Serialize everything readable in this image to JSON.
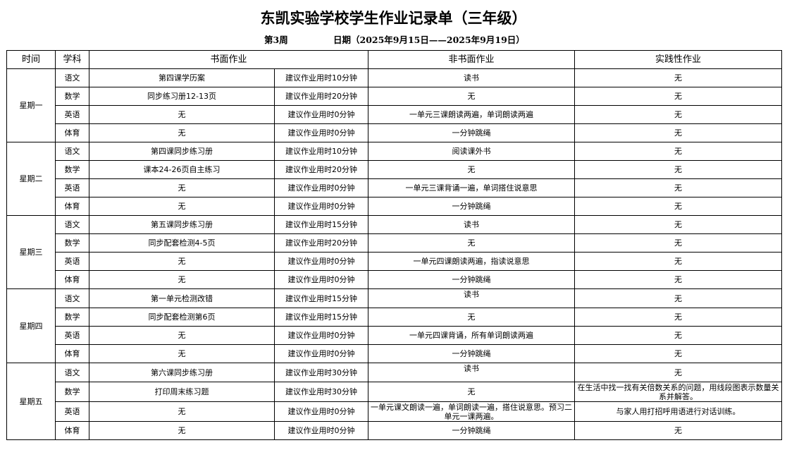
{
  "title": "东凯实验学校学生作业记录单（三年级）",
  "week": "第3周",
  "date": "日期（2025年9月15日——2025年9月19日）",
  "headers": {
    "time": "时间",
    "subject": "学科",
    "written": "书面作业",
    "nonwritten": "非书面作业",
    "practice": "实践性作业"
  },
  "days": [
    {
      "day": "星期一",
      "rows": [
        {
          "subject": "语文",
          "written": "第四课学历案",
          "time": "建议作业用时10分钟",
          "nonwritten": "读书",
          "practice": "无"
        },
        {
          "subject": "数学",
          "written": "同步练习册12-13页",
          "time": "建议作业用时20分钟",
          "nonwritten": "无",
          "practice": "无"
        },
        {
          "subject": "英语",
          "written": "无",
          "time": "建议作业用时0分钟",
          "nonwritten": "一单元三课朗读两遍，单词朗读两遍",
          "practice": "无"
        },
        {
          "subject": "体育",
          "written": "无",
          "time": "建议作业用时0分钟",
          "nonwritten": "一分钟跳绳",
          "practice": "无"
        }
      ]
    },
    {
      "day": "星期二",
      "rows": [
        {
          "subject": "语文",
          "written": "第四课同步练习册",
          "time": "建议作业用时10分钟",
          "nonwritten": "阅读课外书",
          "practice": "无"
        },
        {
          "subject": "数学",
          "written": "课本24-26页自主练习",
          "time": "建议作业用时20分钟",
          "nonwritten": "无",
          "practice": "无"
        },
        {
          "subject": "英语",
          "written": "无",
          "time": "建议作业用时0分钟",
          "nonwritten": "一单元三课背诵一遍，单词搭住说意思",
          "practice": "无"
        },
        {
          "subject": "体育",
          "written": "无",
          "time": "建议作业用时0分钟",
          "nonwritten": "一分钟跳绳",
          "practice": "无"
        }
      ]
    },
    {
      "day": "星期三",
      "rows": [
        {
          "subject": "语文",
          "written": "第五课同步练习册",
          "time": "建议作业用时15分钟",
          "nonwritten": "读书",
          "practice": "无"
        },
        {
          "subject": "数学",
          "written": "同步配套检测4-5页",
          "time": "建议作业用时20分钟",
          "nonwritten": "无",
          "practice": "无"
        },
        {
          "subject": "英语",
          "written": "无",
          "time": "建议作业用时0分钟",
          "nonwritten": "一单元四课朗读两遍，指读说意思",
          "practice": "无"
        },
        {
          "subject": "体育",
          "written": "无",
          "time": "建议作业用时0分钟",
          "nonwritten": "一分钟跳绳",
          "practice": "无"
        }
      ]
    },
    {
      "day": "星期四",
      "rows": [
        {
          "subject": "语文",
          "written": "第一单元检测改错",
          "time": "建议作业用时15分钟",
          "nonwritten": "读书",
          "practice": "无"
        },
        {
          "subject": "数学",
          "written": "同步配套检测第6页",
          "time": "建议作业用时15分钟",
          "nonwritten": "无",
          "practice": "无"
        },
        {
          "subject": "英语",
          "written": "无",
          "time": "建议作业用时0分钟",
          "nonwritten": "一单元四课背诵，所有单词朗读两遍",
          "practice": "无"
        },
        {
          "subject": "体育",
          "written": "无",
          "time": "建议作业用时0分钟",
          "nonwritten": "一分钟跳绳",
          "practice": "无"
        }
      ]
    },
    {
      "day": "星期五",
      "rows": [
        {
          "subject": "语文",
          "written": "第六课同步练习册",
          "time": "建议作业用时30分钟",
          "nonwritten": "读书",
          "practice": "无"
        },
        {
          "subject": "数学",
          "written": "打印周末练习题",
          "time": "建议作业用时30分钟",
          "nonwritten": "无",
          "practice": "在生活中找一找有关倍数关系的问题，用线段图表示数量关系并解答。"
        },
        {
          "subject": "英语",
          "written": "无",
          "time": "建议作业用时0分钟",
          "nonwritten": "一单元课文朗读一遍，单词朗读一遍，搭住说意思。预习二单元一课两遍。",
          "practice": "与家人用打招呼用语进行对话训练。"
        },
        {
          "subject": "体育",
          "written": "无",
          "time": "建议作业用时0分钟",
          "nonwritten": "一分钟跳绳",
          "practice": "无"
        }
      ]
    }
  ]
}
